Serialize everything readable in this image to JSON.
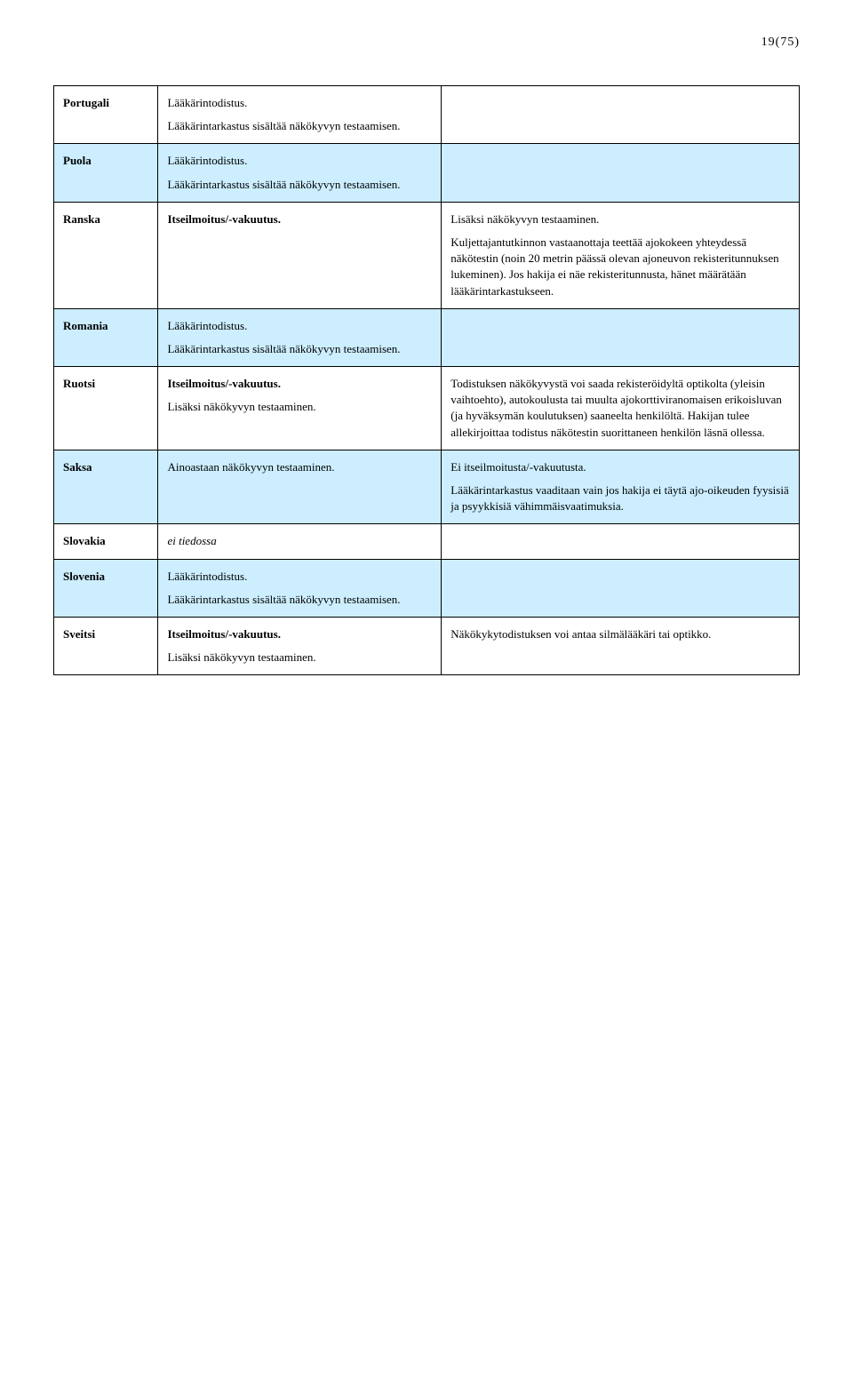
{
  "colors": {
    "row_blue": "#cceeff",
    "row_white": "#ffffff",
    "border": "#000000",
    "text": "#000000"
  },
  "page_number": "19(75)",
  "rows": [
    {
      "country": "Portugali",
      "col2_p1": "Lääkärintodistus.",
      "col2_p2": "Lääkärintarkastus sisältää näkökyvyn testaamisen.",
      "col3": ""
    },
    {
      "country": "Puola",
      "col2_p1": "Lääkärintodistus.",
      "col2_p2": "Lääkärintarkastus sisältää näkökyvyn testaamisen.",
      "col3": ""
    },
    {
      "country": "Ranska",
      "col2_p1": "Itseilmoitus/-vakuutus.",
      "col3_p1": "Lisäksi näkökyvyn testaaminen.",
      "col3_p2": "Kuljettajantutkinnon vastaanottaja teettää ajokokeen yhteydessä näkötestin (noin 20 metrin päässä olevan ajoneuvon rekisteritunnuksen lukeminen). Jos hakija ei näe rekisteritunnusta, hänet määrätään lääkärintarkastukseen."
    },
    {
      "country": "Romania",
      "col2_p1": "Lääkärintodistus.",
      "col2_p2": "Lääkärintarkastus sisältää näkökyvyn testaamisen.",
      "col3": ""
    },
    {
      "country": "Ruotsi",
      "col2_p1": "Itseilmoitus/-vakuutus.",
      "col2_p2": "Lisäksi näkökyvyn testaaminen.",
      "col3": "Todistuksen näkökyvystä voi saada rekisteröidyltä optikolta (yleisin vaihtoehto), autokoulusta tai muulta ajokorttiviranomaisen erikoisluvan (ja hyväksymän koulutuksen) saaneelta henkilöltä. Hakijan tulee allekirjoittaa todistus näkötestin suorittaneen henkilön läsnä ollessa."
    },
    {
      "country": "Saksa",
      "col2_p1": "Ainoastaan näkökyvyn testaaminen.",
      "col3_p1": "Ei itseilmoitusta/-vakuutusta.",
      "col3_p2": "Lääkärintarkastus vaaditaan vain jos hakija ei täytä ajo-oikeuden fyysisiä ja psyykkisiä vähimmäisvaatimuksia."
    },
    {
      "country": "Slovakia",
      "col2_p1": "ei tiedossa",
      "col3": ""
    },
    {
      "country": "Slovenia",
      "col2_p1": "Lääkärintodistus.",
      "col2_p2": "Lääkärintarkastus sisältää näkökyvyn testaamisen.",
      "col3": ""
    },
    {
      "country": "Sveitsi",
      "col2_p1": "Itseilmoitus/-vakuutus.",
      "col2_p2": "Lisäksi näkökyvyn testaaminen.",
      "col3": "Näkökykytodistuksen voi antaa silmälääkäri tai optikko."
    }
  ]
}
